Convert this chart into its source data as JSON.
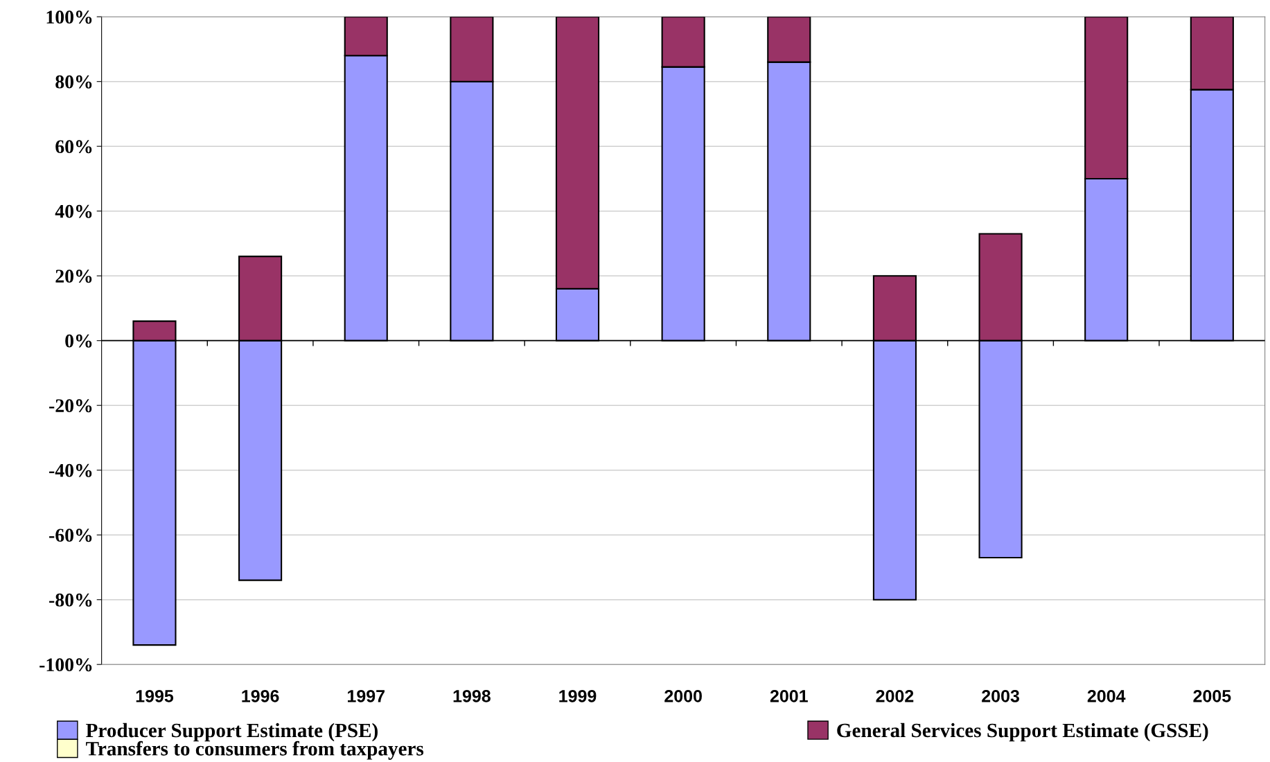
{
  "chart_data": {
    "type": "bar",
    "stacked": true,
    "categories": [
      "1995",
      "1996",
      "1997",
      "1998",
      "1999",
      "2000",
      "2001",
      "2002",
      "2003",
      "2004",
      "2005"
    ],
    "series": [
      {
        "name": "Producer Support Estimate (PSE)",
        "color": "#9999ff",
        "values": [
          -94,
          -74,
          88,
          80,
          16,
          84.5,
          86,
          -80,
          -67,
          50,
          77.5
        ]
      },
      {
        "name": "General Services Support Estimate (GSSE)",
        "color": "#993366",
        "values": [
          6,
          26,
          12,
          20,
          84,
          15.5,
          14,
          20,
          33,
          50,
          22.5
        ]
      },
      {
        "name": "Transfers to consumers from taxpayers",
        "color": "#ffffcc",
        "values": [
          null,
          null,
          null,
          null,
          null,
          null,
          null,
          null,
          null,
          null,
          null
        ]
      }
    ],
    "ylim": [
      -100,
      100
    ],
    "yticks": [
      {
        "value": -100,
        "label": "-100%"
      },
      {
        "value": -80,
        "label": "-80%"
      },
      {
        "value": -60,
        "label": "-60%"
      },
      {
        "value": -40,
        "label": "-40%"
      },
      {
        "value": -20,
        "label": "-20%"
      },
      {
        "value": 0,
        "label": "0%"
      },
      {
        "value": 20,
        "label": "20%"
      },
      {
        "value": 40,
        "label": "40%"
      },
      {
        "value": 60,
        "label": "60%"
      },
      {
        "value": 80,
        "label": "80%"
      },
      {
        "value": 100,
        "label": "100%"
      }
    ],
    "grid": "y",
    "legend": "bottom"
  }
}
